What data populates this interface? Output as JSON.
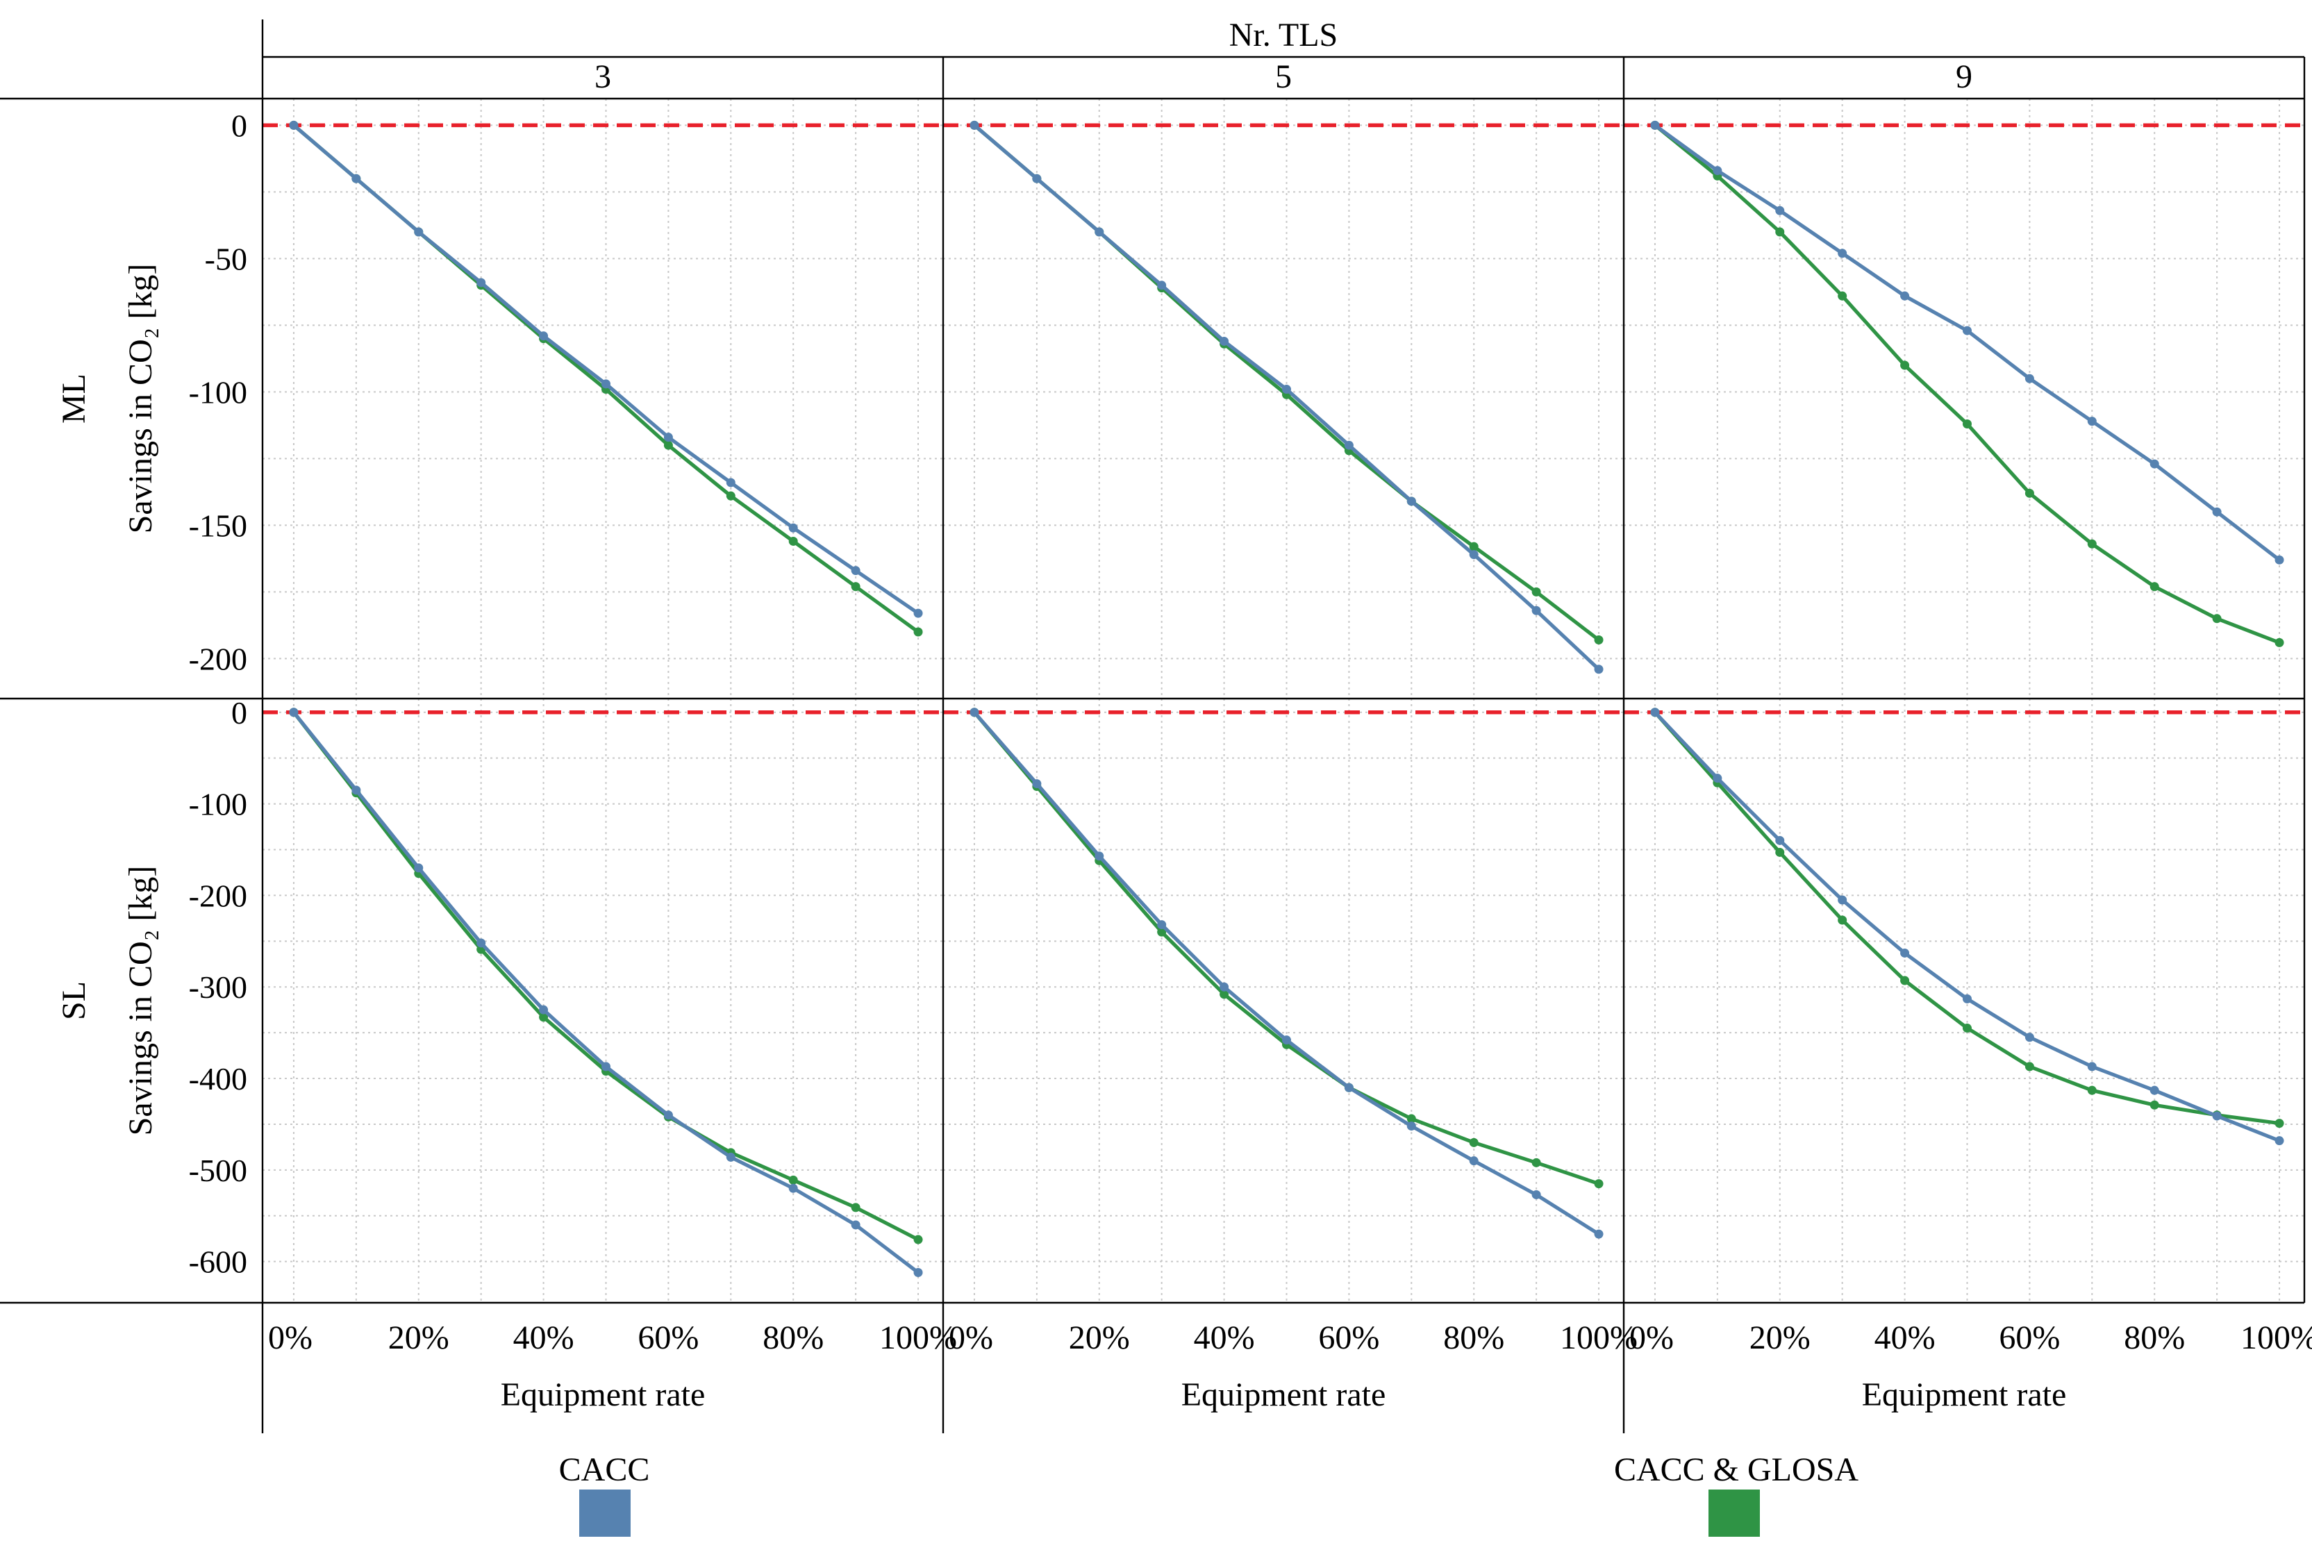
{
  "chart_data": {
    "type": "line",
    "title": "",
    "column_header": "Nr. TLS",
    "columns": [
      "3",
      "5",
      "9"
    ],
    "rows": [
      "ML",
      "SL"
    ],
    "ylabel": "Savings in CO₂ [kg]",
    "xlabel": "Equipment rate",
    "x": [
      0,
      10,
      20,
      30,
      40,
      50,
      60,
      70,
      80,
      90,
      100
    ],
    "x_ticks": [
      "0%",
      "20%",
      "40%",
      "60%",
      "80%",
      "100%"
    ],
    "x_tick_values": [
      0,
      20,
      40,
      60,
      80,
      100
    ],
    "xlim": [
      -5,
      104
    ],
    "grid": true,
    "reference_line": {
      "y": 0,
      "color": "#e8212b",
      "style": "dashed"
    },
    "row_axes": [
      {
        "ylim": [
          -215,
          10
        ],
        "y_ticks": [
          0,
          -50,
          -100,
          -150,
          -200
        ],
        "y_tick_labels": [
          "0",
          "-50",
          "-100",
          "-150",
          "-200"
        ]
      },
      {
        "ylim": [
          -645,
          15
        ],
        "y_ticks": [
          0,
          -100,
          -200,
          -300,
          -400,
          -500,
          -600
        ],
        "y_tick_labels": [
          "0",
          "-100",
          "-200",
          "-300",
          "-400",
          "-500",
          "-600"
        ]
      }
    ],
    "legend": {
      "placement": "bottom",
      "items": [
        {
          "label": "CACC",
          "color": "#5682b0"
        },
        {
          "label": "CACC & GLOSA",
          "color": "#2f9445"
        }
      ]
    },
    "panels": [
      {
        "row": "ML",
        "column": "3",
        "series": [
          {
            "name": "CACC",
            "values": [
              0,
              -20,
              -40,
              -59,
              -79,
              -97,
              -117,
              -134,
              -151,
              -167,
              -183
            ]
          },
          {
            "name": "CACC & GLOSA",
            "values": [
              0,
              -20,
              -40,
              -60,
              -80,
              -99,
              -120,
              -139,
              -156,
              -173,
              -190
            ]
          }
        ]
      },
      {
        "row": "ML",
        "column": "5",
        "series": [
          {
            "name": "CACC",
            "values": [
              0,
              -20,
              -40,
              -60,
              -81,
              -99,
              -120,
              -141,
              -161,
              -182,
              -204
            ]
          },
          {
            "name": "CACC & GLOSA",
            "values": [
              0,
              -20,
              -40,
              -61,
              -82,
              -101,
              -122,
              -141,
              -158,
              -175,
              -193
            ]
          }
        ]
      },
      {
        "row": "ML",
        "column": "9",
        "series": [
          {
            "name": "CACC",
            "values": [
              0,
              -17,
              -32,
              -48,
              -64,
              -77,
              -95,
              -111,
              -127,
              -145,
              -163
            ]
          },
          {
            "name": "CACC & GLOSA",
            "values": [
              0,
              -19,
              -40,
              -64,
              -90,
              -112,
              -138,
              -157,
              -173,
              -185,
              -194
            ]
          }
        ]
      },
      {
        "row": "SL",
        "column": "3",
        "series": [
          {
            "name": "CACC",
            "values": [
              0,
              -85,
              -170,
              -252,
              -325,
              -387,
              -440,
              -486,
              -520,
              -560,
              -612
            ]
          },
          {
            "name": "CACC & GLOSA",
            "values": [
              0,
              -88,
              -176,
              -259,
              -333,
              -392,
              -442,
              -481,
              -511,
              -541,
              -576
            ]
          }
        ]
      },
      {
        "row": "SL",
        "column": "5",
        "series": [
          {
            "name": "CACC",
            "values": [
              0,
              -78,
              -157,
              -232,
              -300,
              -358,
              -410,
              -452,
              -490,
              -527,
              -570
            ]
          },
          {
            "name": "CACC & GLOSA",
            "values": [
              0,
              -81,
              -162,
              -240,
              -308,
              -363,
              -410,
              -444,
              -470,
              -492,
              -515
            ]
          }
        ]
      },
      {
        "row": "SL",
        "column": "9",
        "series": [
          {
            "name": "CACC",
            "values": [
              0,
              -72,
              -140,
              -205,
              -263,
              -313,
              -355,
              -387,
              -413,
              -441,
              -468
            ]
          },
          {
            "name": "CACC & GLOSA",
            "values": [
              0,
              -77,
              -153,
              -227,
              -293,
              -345,
              -387,
              -413,
              -429,
              -440,
              -449
            ]
          }
        ]
      }
    ]
  }
}
